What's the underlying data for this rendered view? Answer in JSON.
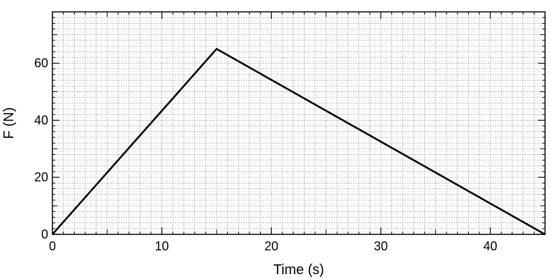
{
  "chart_data": {
    "type": "line",
    "title": "",
    "xlabel": "Time (s)",
    "ylabel": "F (N)",
    "xlim": [
      0,
      45
    ],
    "ylim": [
      0,
      78
    ],
    "x_ticks": [
      0,
      10,
      20,
      30,
      40
    ],
    "x_tick_labels": [
      "0",
      "10",
      "20",
      "30",
      "40"
    ],
    "y_ticks": [
      0,
      20,
      40,
      60
    ],
    "y_tick_labels": [
      "0",
      "20",
      "40",
      "60"
    ],
    "grid": true,
    "legend": "none",
    "series": [
      {
        "color": "#000000",
        "x": [
          0,
          15,
          45
        ],
        "y": [
          0,
          65,
          0
        ]
      }
    ]
  }
}
